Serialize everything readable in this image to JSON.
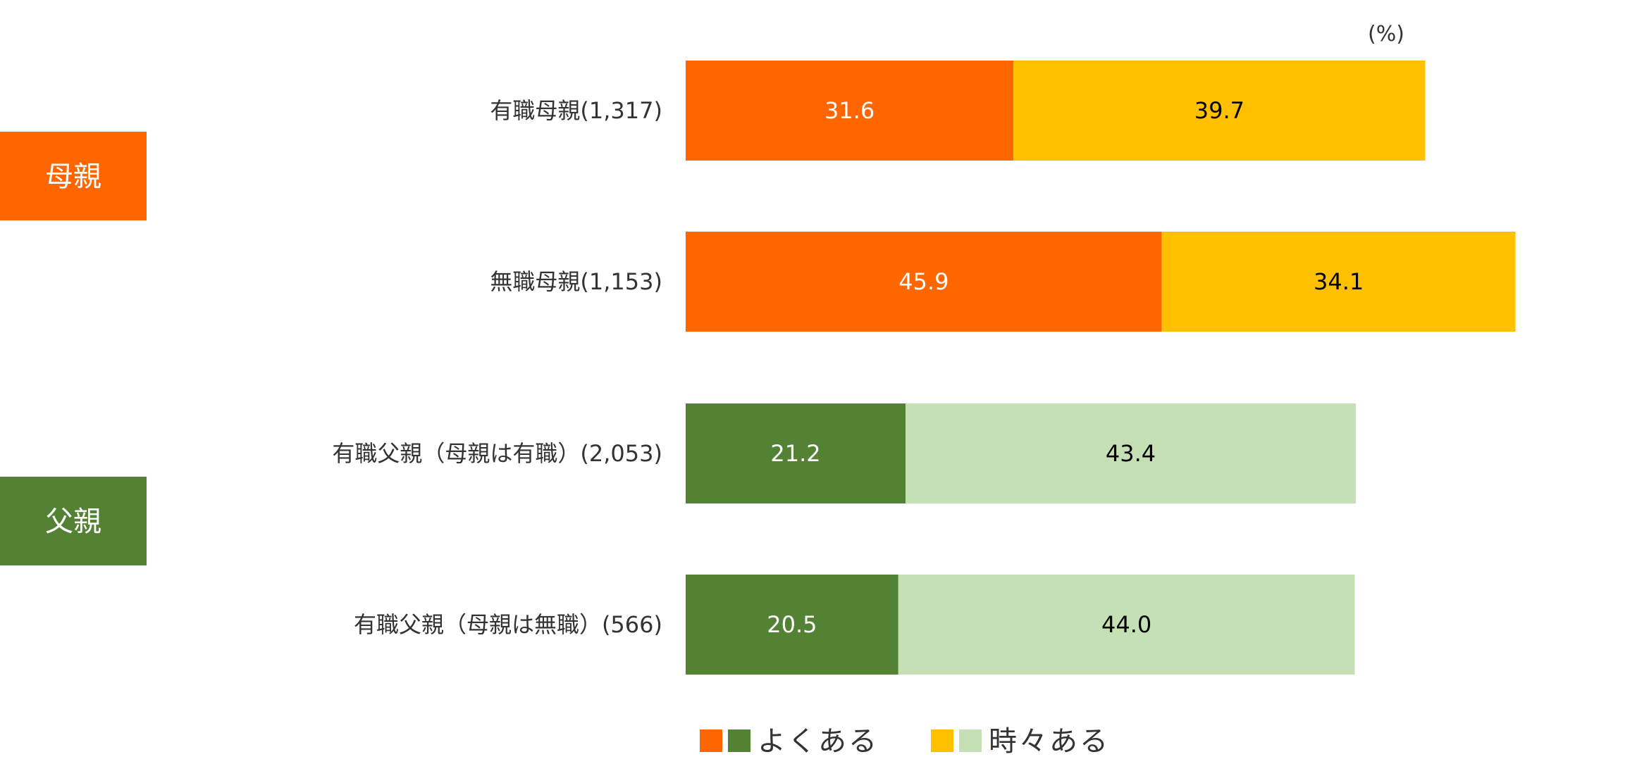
{
  "chart_data": {
    "type": "bar",
    "orientation": "horizontal",
    "stacked": true,
    "unit_label": "(%)",
    "groups": [
      {
        "name": "母親",
        "color": "#FF6600"
      },
      {
        "name": "父親",
        "color": "#548235"
      }
    ],
    "categories": [
      "有職母親(1,317)",
      "無職母親(1,153)",
      "有職父親（母親は有職）(2,053)",
      "有職父親（母親は無職）(566)"
    ],
    "category_group": [
      0,
      0,
      1,
      1
    ],
    "series": [
      {
        "name": "よくある",
        "values": [
          31.6,
          45.9,
          21.2,
          20.5
        ]
      },
      {
        "name": "時々ある",
        "values": [
          39.7,
          34.1,
          43.4,
          44.0
        ]
      }
    ],
    "value_labels": [
      [
        "31.6",
        "45.9",
        "21.2",
        "20.5"
      ],
      [
        "39.7",
        "34.1",
        "43.4",
        "44.0"
      ]
    ],
    "colors": {
      "mother_often": "#FF6600",
      "mother_sometimes": "#FFC000",
      "father_often": "#548235",
      "father_sometimes": "#C5E0B4",
      "label_text": "#333333"
    },
    "legend": {
      "position": "bottom",
      "entries": [
        {
          "label": "よくある",
          "swatches": [
            "#FF6600",
            "#548235"
          ]
        },
        {
          "label": "時々ある",
          "swatches": [
            "#FFC000",
            "#C5E0B4"
          ]
        }
      ]
    },
    "xlim": [
      0,
      100
    ],
    "grid": false
  }
}
